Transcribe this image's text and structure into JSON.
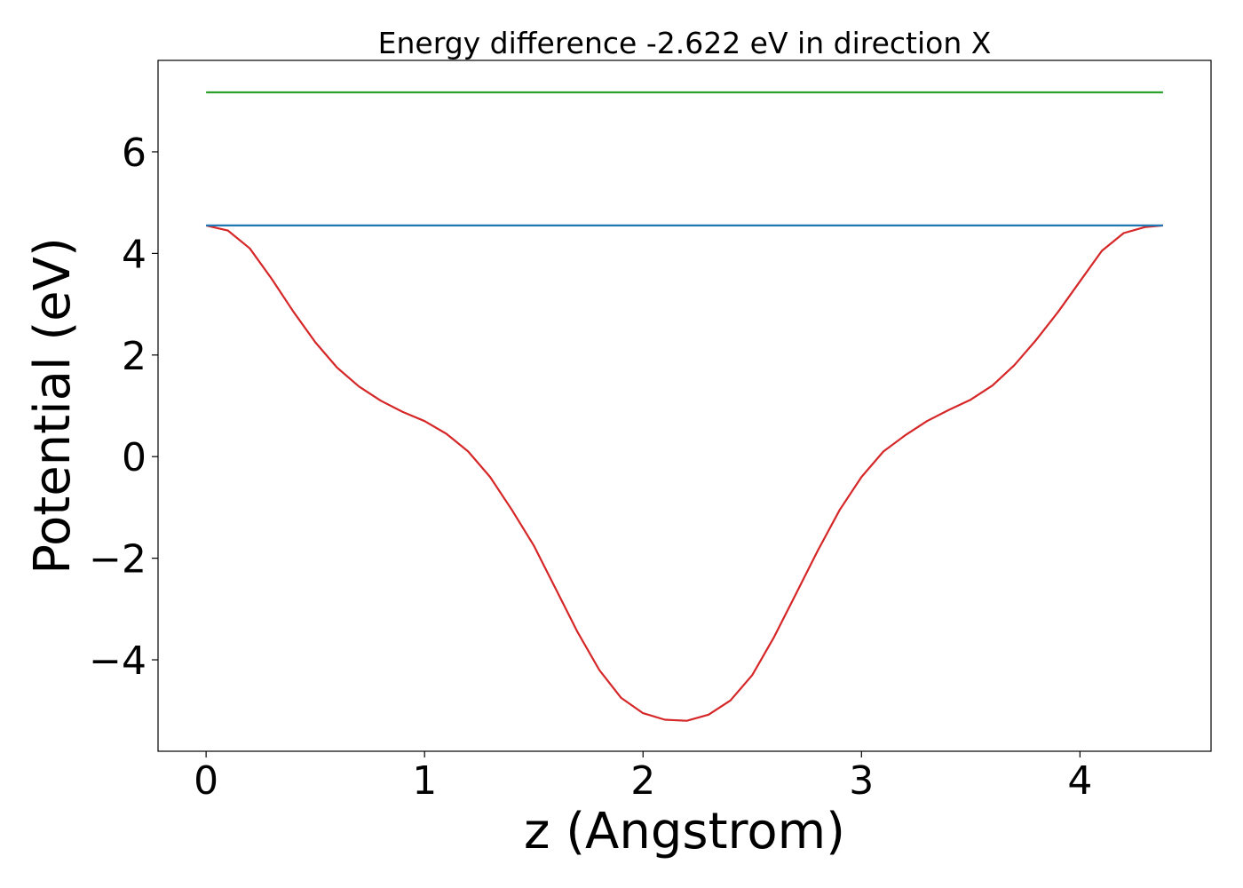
{
  "chart_data": {
    "type": "line",
    "title": "Energy difference -2.622 eV in direction X",
    "xlabel": "z (Angstrom)",
    "ylabel": "Potential (eV)",
    "xlim": [
      -0.22,
      4.6
    ],
    "ylim": [
      -5.8,
      7.8
    ],
    "xticks": [
      0,
      1,
      2,
      3,
      4
    ],
    "xtick_labels": [
      "0",
      "1",
      "2",
      "3",
      "4"
    ],
    "yticks": [
      -4,
      -2,
      0,
      2,
      4,
      6
    ],
    "ytick_labels": [
      "−4",
      "−2",
      "0",
      "2",
      "4",
      "6"
    ],
    "grid": false,
    "series": [
      {
        "color": "#d62728",
        "x": [
          0,
          0.1,
          0.2,
          0.3,
          0.4,
          0.5,
          0.6,
          0.7,
          0.8,
          0.9,
          1.0,
          1.1,
          1.2,
          1.3,
          1.4,
          1.5,
          1.6,
          1.7,
          1.8,
          1.9,
          2.0,
          2.1,
          2.2,
          2.3,
          2.4,
          2.5,
          2.6,
          2.7,
          2.8,
          2.9,
          3.0,
          3.1,
          3.2,
          3.3,
          3.4,
          3.5,
          3.6,
          3.7,
          3.8,
          3.9,
          4.0,
          4.1,
          4.2,
          4.3,
          4.38
        ],
        "y": [
          4.55,
          4.45,
          4.1,
          3.5,
          2.85,
          2.25,
          1.75,
          1.38,
          1.1,
          0.88,
          0.7,
          0.45,
          0.1,
          -0.4,
          -1.05,
          -1.75,
          -2.6,
          -3.45,
          -4.2,
          -4.75,
          -5.05,
          -5.18,
          -5.2,
          -5.08,
          -4.8,
          -4.3,
          -3.55,
          -2.7,
          -1.85,
          -1.05,
          -0.4,
          0.1,
          0.42,
          0.7,
          0.92,
          1.12,
          1.4,
          1.8,
          2.3,
          2.85,
          3.45,
          4.05,
          4.4,
          4.52,
          4.55
        ]
      },
      {
        "color": "#1f77b4",
        "x": [
          0,
          4.38
        ],
        "y": [
          4.55,
          4.55
        ]
      },
      {
        "color": "#2ca02c",
        "x": [
          0,
          4.38
        ],
        "y": [
          7.17,
          7.17
        ]
      }
    ]
  }
}
